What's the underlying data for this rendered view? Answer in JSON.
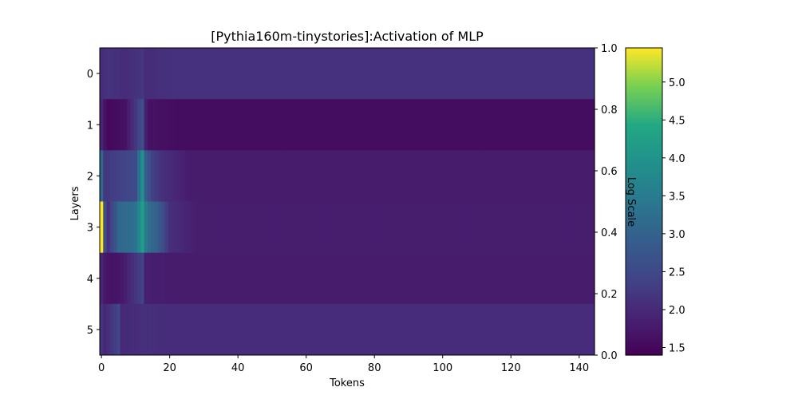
{
  "chart_data": {
    "type": "heatmap",
    "title": "[Pythia160m-tinystories]:Activation of MLP",
    "xlabel": "Tokens",
    "ylabel": "Layers",
    "n_tokens": 145,
    "xlim": [
      -0.5,
      144.5
    ],
    "layers": [
      0,
      1,
      2,
      3,
      4,
      5
    ],
    "x_ticks": [
      0,
      20,
      40,
      60,
      80,
      100,
      120,
      140
    ],
    "colorbar": {
      "label": "Log Scale",
      "min": 1.4,
      "max": 5.45,
      "ticks": [
        1.5,
        2.0,
        2.5,
        3.0,
        3.5,
        4.0,
        4.5,
        5.0
      ],
      "colormap": "viridis"
    },
    "secondary_y_axis": {
      "range": [
        0.0,
        1.0
      ],
      "ticks": [
        "0.0",
        "0.2",
        "0.4",
        "0.6",
        "0.8",
        "1.0"
      ]
    },
    "layer_profiles": [
      {
        "layer": 0,
        "base": 2.13,
        "early_tokens": [
          [
            0,
            2.05
          ],
          [
            2,
            2.15
          ],
          [
            7,
            2.05
          ],
          [
            12,
            2.2
          ],
          [
            13,
            2.05
          ]
        ]
      },
      {
        "layer": 1,
        "base": 1.58,
        "early_tokens": [
          [
            0,
            1.95
          ],
          [
            1,
            1.65
          ],
          [
            2,
            1.5
          ],
          [
            7,
            1.65
          ],
          [
            12,
            2.6
          ],
          [
            13,
            1.85
          ],
          [
            14,
            1.65
          ]
        ]
      },
      {
        "layer": 2,
        "base": 1.8,
        "early_tokens": [
          [
            0,
            3.1
          ],
          [
            1,
            2.2
          ],
          [
            3,
            2.3
          ],
          [
            6,
            2.4
          ],
          [
            10,
            2.55
          ],
          [
            12,
            3.95
          ],
          [
            13,
            2.9
          ],
          [
            15,
            2.35
          ],
          [
            18,
            2.1
          ]
        ]
      },
      {
        "layer": 3,
        "base": 1.82,
        "early_tokens": [
          [
            0,
            5.45
          ],
          [
            1,
            2.6
          ],
          [
            2,
            2.1
          ],
          [
            3,
            2.45
          ],
          [
            4,
            2.7
          ],
          [
            5,
            3.1
          ],
          [
            8,
            3.2
          ],
          [
            10,
            3.3
          ],
          [
            12,
            4.2
          ],
          [
            13,
            3.5
          ],
          [
            14,
            3.2
          ],
          [
            16,
            3.0
          ],
          [
            18,
            2.6
          ],
          [
            20,
            2.1
          ]
        ]
      },
      {
        "layer": 4,
        "base": 1.8,
        "early_tokens": [
          [
            0,
            1.95
          ],
          [
            1,
            1.75
          ],
          [
            3,
            1.65
          ],
          [
            6,
            1.75
          ],
          [
            12,
            2.4
          ],
          [
            13,
            1.85
          ]
        ]
      },
      {
        "layer": 5,
        "base": 2.05,
        "early_tokens": [
          [
            0,
            2.15
          ],
          [
            1,
            1.95
          ],
          [
            5,
            2.45
          ],
          [
            6,
            2.0
          ],
          [
            12,
            2.1
          ]
        ]
      }
    ]
  }
}
